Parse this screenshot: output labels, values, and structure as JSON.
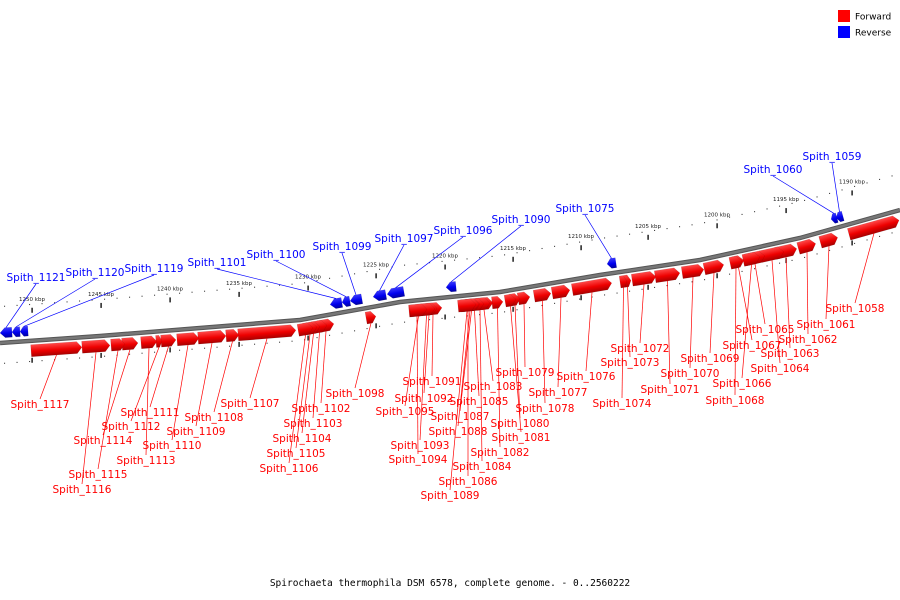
{
  "caption": "Spirochaeta thermophila DSM 6578, complete genome. - 0..2560222",
  "colors": {
    "forward": "#ff0000",
    "reverse": "#0000ff",
    "backbone": "#777777"
  },
  "legend": [
    {
      "label": "Forward",
      "color": "#ff0000"
    },
    {
      "label": "Reverse",
      "color": "#0000ff"
    }
  ],
  "kbp_labels": [
    "1190 kbp",
    "1195 kbp",
    "1200 kbp",
    "1205 kbp",
    "1210 kbp",
    "1215 kbp",
    "1220 kbp",
    "1225 kbp",
    "1230 kbp",
    "1235 kbp",
    "1240 kbp",
    "1245 kbp",
    "1250 kbp"
  ],
  "reverse_genes": [
    "Spith_1059",
    "Spith_1060",
    "Spith_1075",
    "Spith_1090",
    "Spith_1096",
    "Spith_1097",
    "Spith_1099",
    "Spith_1100",
    "Spith_1101",
    "Spith_1119",
    "Spith_1120",
    "Spith_1121"
  ],
  "forward_genes": [
    "Spith_1058",
    "Spith_1061",
    "Spith_1062",
    "Spith_1063",
    "Spith_1064",
    "Spith_1065",
    "Spith_1066",
    "Spith_1067",
    "Spith_1068",
    "Spith_1069",
    "Spith_1070",
    "Spith_1071",
    "Spith_1072",
    "Spith_1073",
    "Spith_1074",
    "Spith_1076",
    "Spith_1077",
    "Spith_1078",
    "Spith_1079",
    "Spith_1080",
    "Spith_1081",
    "Spith_1082",
    "Spith_1083",
    "Spith_1084",
    "Spith_1085",
    "Spith_1086",
    "Spith_1087",
    "Spith_1088",
    "Spith_1089",
    "Spith_1091",
    "Spith_1092",
    "Spith_1093",
    "Spith_1094",
    "Spith_1095",
    "Spith_1098",
    "Spith_1102",
    "Spith_1103",
    "Spith_1104",
    "Spith_1105",
    "Spith_1106",
    "Spith_1107",
    "Spith_1108",
    "Spith_1109",
    "Spith_1110",
    "Spith_1111",
    "Spith_1112",
    "Spith_1113",
    "Spith_1114",
    "Spith_1115",
    "Spith_1116",
    "Spith_1117"
  ]
}
